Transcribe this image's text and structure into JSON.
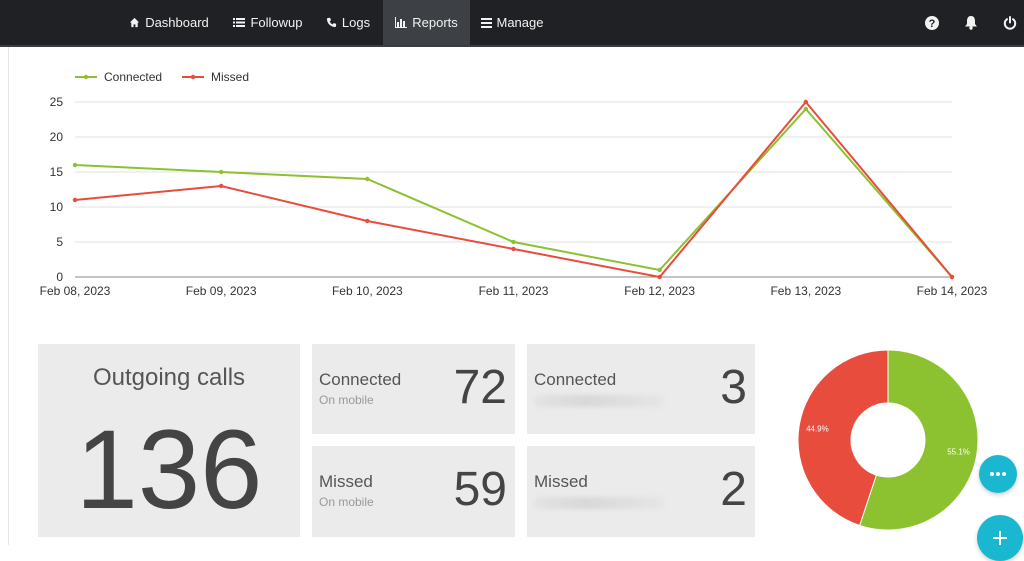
{
  "nav": {
    "items": [
      {
        "label": "Dashboard",
        "icon": "home-icon"
      },
      {
        "label": "Followup",
        "icon": "list-icon"
      },
      {
        "label": "Logs",
        "icon": "phone-icon"
      },
      {
        "label": "Reports",
        "icon": "bar-chart-icon",
        "active": true
      },
      {
        "label": "Manage",
        "icon": "menu-icon"
      }
    ],
    "right_icons": [
      "help-icon",
      "bell-icon",
      "power-icon"
    ]
  },
  "chart_data": {
    "type": "line",
    "x": [
      "Feb 08, 2023",
      "Feb 09, 2023",
      "Feb 10, 2023",
      "Feb 11, 2023",
      "Feb 12, 2023",
      "Feb 13, 2023",
      "Feb 14, 2023"
    ],
    "series": [
      {
        "name": "Connected",
        "color": "#8cc12f",
        "values": [
          16,
          15,
          14,
          5,
          1,
          24,
          0
        ]
      },
      {
        "name": "Missed",
        "color": "#e74c3c",
        "values": [
          11,
          13,
          8,
          4,
          0,
          25,
          0
        ]
      }
    ],
    "ylim": [
      0,
      25
    ],
    "yticks": [
      "0",
      "5",
      "10",
      "15",
      "20",
      "25"
    ],
    "grid": true,
    "legend": "top-left"
  },
  "summary": {
    "title": "Outgoing calls",
    "total": "136"
  },
  "cards": [
    {
      "label": "Connected",
      "sub": "On mobile",
      "value": "72",
      "sub_blurred": false
    },
    {
      "label": "Missed",
      "sub": "On mobile",
      "value": "59",
      "sub_blurred": false
    },
    {
      "label": "Connected",
      "sub": "",
      "value": "3",
      "sub_blurred": true
    },
    {
      "label": "Missed",
      "sub": "",
      "value": "2",
      "sub_blurred": true
    }
  ],
  "donut": {
    "slices": [
      {
        "label": "55.1%",
        "value": 55.1,
        "color": "#8cc12f"
      },
      {
        "label": "44.9%",
        "value": 44.9,
        "color": "#e74c3c"
      }
    ]
  },
  "fabs": {
    "chat_icon": "chat-icon",
    "add_icon": "plus-icon"
  }
}
